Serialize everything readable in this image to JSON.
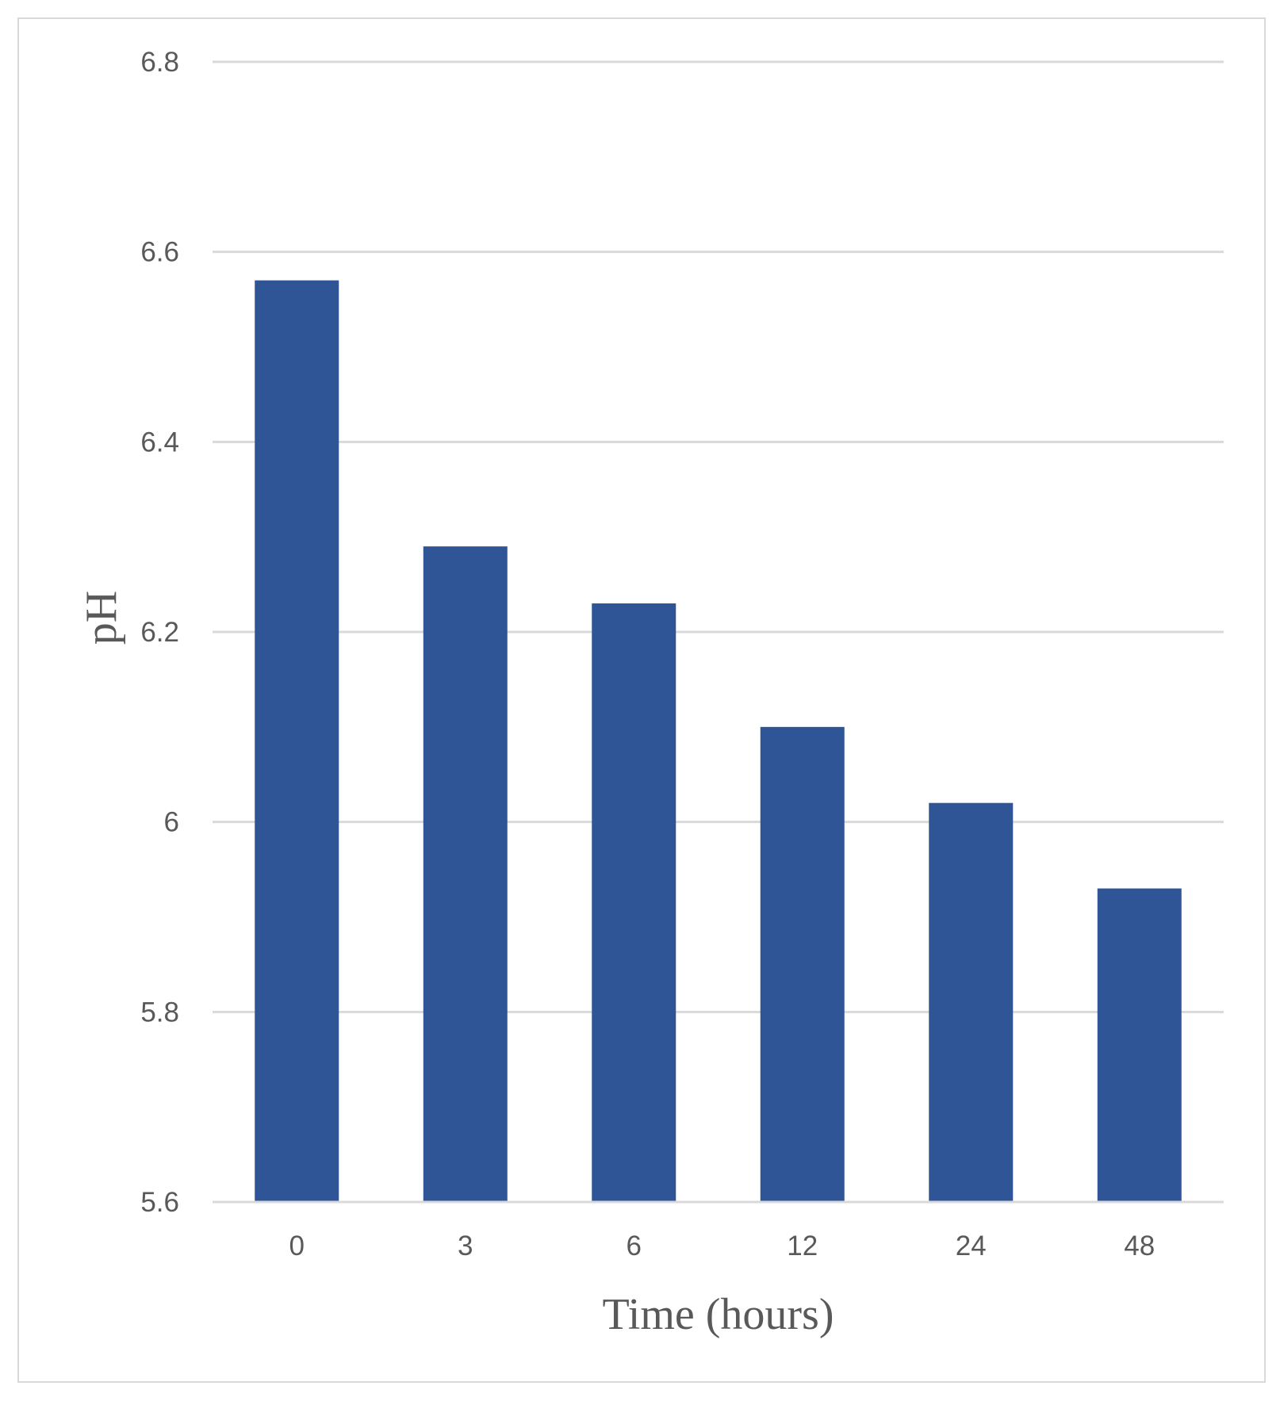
{
  "chart_data": {
    "type": "bar",
    "categories": [
      "0",
      "3",
      "6",
      "12",
      "24",
      "48"
    ],
    "series": [
      {
        "values": [
          6.57,
          6.29,
          6.23,
          6.1,
          6.02,
          5.93
        ]
      }
    ],
    "xlabel": "Time (hours)",
    "ylabel": "pH",
    "ylim": [
      5.6,
      6.8
    ],
    "yticks": [
      "5.6",
      "5.8",
      "6",
      "6.2",
      "6.4",
      "6.6",
      "6.8"
    ],
    "grid": true,
    "legend": "none",
    "colors": {
      "bar": "#2f5597",
      "grid": "#d9d9d9",
      "text": "#595959",
      "border": "#d9d9d9"
    }
  }
}
